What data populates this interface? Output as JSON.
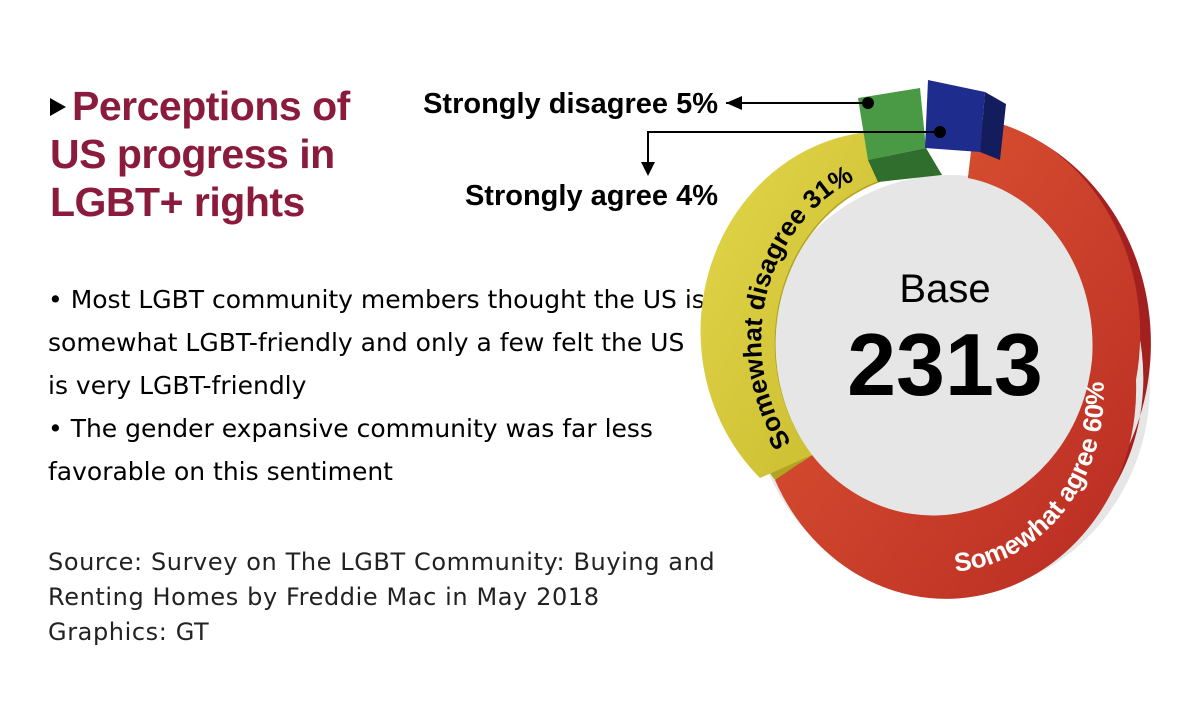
{
  "header": {
    "title_line1": "Perceptions of",
    "title_line2": "US progress in",
    "title_line3": "LGBT+ rights"
  },
  "bullets": [
    "• Most LGBT community members thought the US is somewhat LGBT-friendly and only a few felt the US is very LGBT-friendly",
    "• The gender expansive community was far less favorable on this sentiment"
  ],
  "source": {
    "line1": "Source: Survey on The LGBT Community: Buying and",
    "line2": "Renting Homes by Freddie Mac in May 2018",
    "line3": "Graphics: GT"
  },
  "chart_data": {
    "type": "pie",
    "title": "Perceptions of US progress in LGBT+ rights",
    "center_label": "Base",
    "center_value": "2313",
    "slices": [
      {
        "label": "Strongly disagree 5%",
        "value": 5,
        "color": "#3d8c3a"
      },
      {
        "label": "Strongly agree 4%",
        "value": 4,
        "color": "#1c2a88"
      },
      {
        "label": "Somewhat agree 60%",
        "value": 60,
        "color": "#d0462c"
      },
      {
        "label": "Somewhat disagree 31%",
        "value": 31,
        "color": "#d6c93a"
      }
    ]
  }
}
